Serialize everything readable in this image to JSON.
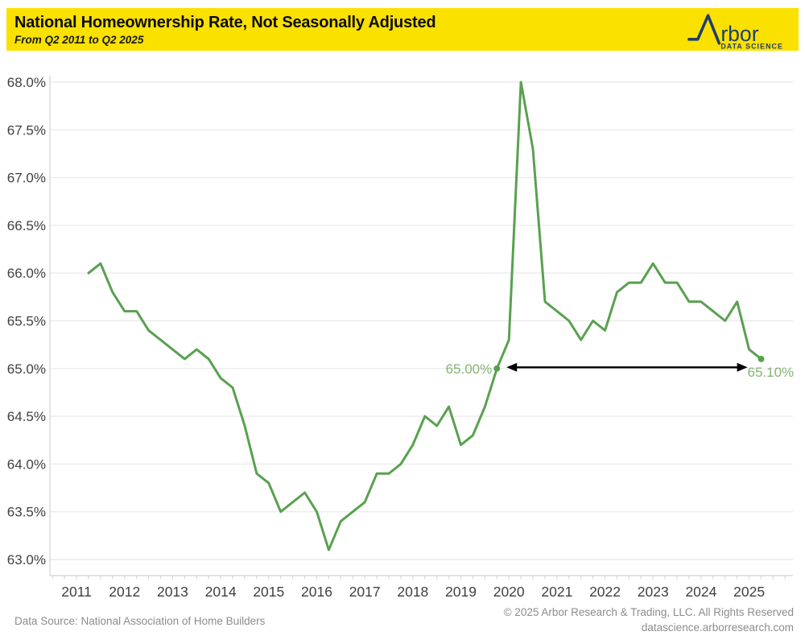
{
  "header": {
    "title": "National Homeownership Rate, Not Seasonally Adjusted",
    "subtitle": "From Q2 2011 to Q2 2025",
    "logo": {
      "brand": "Arbor",
      "brand_visible_text": "rbor",
      "tagline": "DATA SCIENCE"
    }
  },
  "footer": {
    "data_source": "Data Source: National Association of Home Builders",
    "copyright": "© 2025 Arbor Research & Trading, LLC. All Rights Reserved",
    "website": "datascience.arborresearch.com"
  },
  "colors": {
    "banner_yellow": "#FAE100",
    "logo_navy": "#1F3E6A",
    "line_green": "#59A14F",
    "annotation_green": "#84B573",
    "arrow_black": "#000000",
    "gridline_gray": "#ECECEC",
    "axis_gray": "#D9D9D9",
    "axis_text": "#404040",
    "footer_gray": "#8C8C8C"
  },
  "chart_data": {
    "type": "line",
    "title": "National Homeownership Rate, Not Seasonally Adjusted",
    "subtitle": "From Q2 2011 to Q2 2025",
    "frequency": "quarterly",
    "x_start": "2011-Q2",
    "x_end": "2025-Q2",
    "x_tick_labels": [
      "2011",
      "2012",
      "2013",
      "2014",
      "2015",
      "2016",
      "2017",
      "2018",
      "2019",
      "2020",
      "2021",
      "2022",
      "2023",
      "2024",
      "2025"
    ],
    "y_tick_labels": [
      "68.0%",
      "67.5%",
      "67.0%",
      "66.5%",
      "66.0%",
      "65.5%",
      "65.0%",
      "64.5%",
      "64.0%",
      "63.5%",
      "63.0%"
    ],
    "ylim": [
      63.0,
      68.0
    ],
    "y_step": 0.5,
    "ylabel": "",
    "xlabel": "",
    "grid": "horizontal",
    "line_color": "#59A14F",
    "annotation_color": "#84B573",
    "values": [
      66.0,
      66.1,
      65.8,
      65.6,
      65.6,
      65.4,
      65.3,
      65.2,
      65.1,
      65.2,
      65.1,
      64.9,
      64.8,
      64.4,
      63.9,
      63.8,
      63.5,
      63.6,
      63.7,
      63.5,
      63.1,
      63.4,
      63.5,
      63.6,
      63.9,
      63.9,
      64.0,
      64.2,
      64.5,
      64.4,
      64.6,
      64.2,
      64.3,
      64.6,
      65.0,
      65.3,
      68.0,
      67.3,
      65.7,
      65.6,
      65.5,
      65.3,
      65.5,
      65.4,
      65.8,
      65.9,
      65.9,
      66.1,
      65.9,
      65.9,
      65.7,
      65.7,
      65.6,
      65.5,
      65.7,
      65.2,
      65.1
    ],
    "annotations": [
      {
        "text": "65.00%",
        "quarter": "2019-Q4",
        "index": 34,
        "value": 65.0,
        "side": "left"
      },
      {
        "text": "65.10%",
        "quarter": "2025-Q2",
        "index": 56,
        "value": 65.1,
        "side": "right"
      }
    ],
    "arrow": {
      "from_index": 35,
      "to_index": 55,
      "value": 65.0,
      "color": "#000000"
    }
  }
}
